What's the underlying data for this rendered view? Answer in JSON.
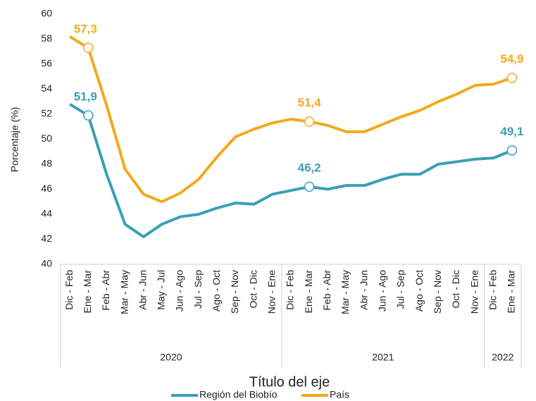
{
  "chart_data": {
    "type": "line",
    "x_title": "Título del eje",
    "y_title": "Porcentaje (%)",
    "categories": [
      "Dic - Feb",
      "Ene - Mar",
      "Feb - Abr",
      "Mar - May",
      "Abr - Jun",
      "May - Jul",
      "Jun - Ago",
      "Jul - Sep",
      "Ago - Oct",
      "Sep - Nov",
      "Oct - Dic",
      "Nov - Ene",
      "Dic - Feb",
      "Ene - Mar",
      "Feb - Abr",
      "Mar - May",
      "Abr - Jun",
      "Jun - Ago",
      "Jul - Sep",
      "Ago - Oct",
      "Sep - Nov",
      "Oct - Dic",
      "Nov - Ene",
      "Dic - Feb",
      "Ene - Mar"
    ],
    "x_groups": [
      {
        "label": "2020",
        "size": 12
      },
      {
        "label": "2021",
        "size": 11
      },
      {
        "label": "2022",
        "size": 2
      }
    ],
    "series": [
      {
        "name": "Región del Biobío",
        "color": "#3a9fb5",
        "values": [
          52.8,
          51.9,
          47.2,
          43.2,
          42.2,
          43.2,
          43.8,
          44.0,
          44.5,
          44.9,
          44.8,
          45.6,
          45.9,
          46.2,
          46.0,
          46.3,
          46.3,
          46.8,
          47.2,
          47.2,
          48.0,
          48.2,
          48.4,
          48.5,
          49.1
        ],
        "value_labels": [
          null,
          "51,9",
          null,
          null,
          null,
          null,
          null,
          null,
          null,
          null,
          null,
          null,
          null,
          "46,2",
          null,
          null,
          null,
          null,
          null,
          null,
          null,
          null,
          null,
          null,
          "49,1"
        ]
      },
      {
        "name": "País",
        "color": "#f5a81c",
        "values": [
          58.2,
          57.3,
          52.7,
          47.6,
          45.6,
          45.0,
          45.7,
          46.8,
          48.6,
          50.2,
          50.8,
          51.3,
          51.6,
          51.4,
          51.1,
          50.6,
          50.6,
          51.2,
          51.8,
          52.3,
          53.0,
          53.6,
          54.3,
          54.4,
          54.9
        ],
        "value_labels": [
          null,
          "57,3",
          null,
          null,
          null,
          null,
          null,
          null,
          null,
          null,
          null,
          null,
          null,
          "51,4",
          null,
          null,
          null,
          null,
          null,
          null,
          null,
          null,
          null,
          null,
          "54,9"
        ]
      }
    ],
    "ylim": [
      40,
      60
    ],
    "yticks": [
      40,
      42,
      44,
      46,
      48,
      50,
      52,
      54,
      56,
      58,
      60
    ],
    "grid": false,
    "legend": "bottom"
  }
}
